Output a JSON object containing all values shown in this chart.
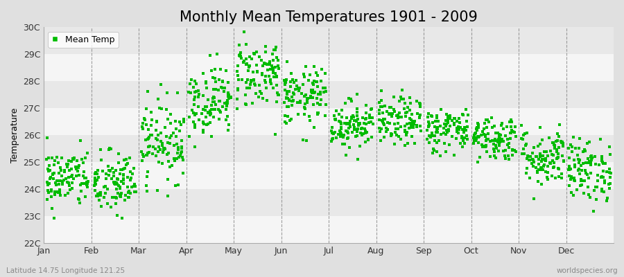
{
  "title": "Monthly Mean Temperatures 1901 - 2009",
  "ylabel": "Temperature",
  "ylim": [
    22,
    30
  ],
  "ytick_labels": [
    "22C",
    "23C",
    "24C",
    "25C",
    "26C",
    "27C",
    "28C",
    "29C",
    "30C"
  ],
  "ytick_vals": [
    22,
    23,
    24,
    25,
    26,
    27,
    28,
    29,
    30
  ],
  "months": [
    "Jan",
    "Feb",
    "Mar",
    "Apr",
    "May",
    "Jun",
    "Jul",
    "Aug",
    "Sep",
    "Oct",
    "Nov",
    "Dec"
  ],
  "month_means": [
    24.4,
    24.2,
    25.8,
    27.3,
    28.3,
    27.4,
    26.4,
    26.5,
    26.2,
    25.9,
    25.2,
    24.7
  ],
  "month_stds": [
    0.55,
    0.6,
    0.75,
    0.65,
    0.65,
    0.55,
    0.45,
    0.45,
    0.42,
    0.42,
    0.55,
    0.58
  ],
  "n_years": 109,
  "dot_color": "#00BB00",
  "dot_size": 5,
  "figure_bg": "#E0E0E0",
  "plot_bg_light": "#F5F5F5",
  "plot_bg_dark": "#E8E8E8",
  "legend_label": "Mean Temp",
  "bottom_left": "Latitude 14.75 Longitude 121.25",
  "bottom_right": "worldspecies.org",
  "title_fontsize": 15,
  "label_fontsize": 9,
  "tick_fontsize": 9,
  "dashed_color": "#888888",
  "spine_color": "#AAAAAA"
}
